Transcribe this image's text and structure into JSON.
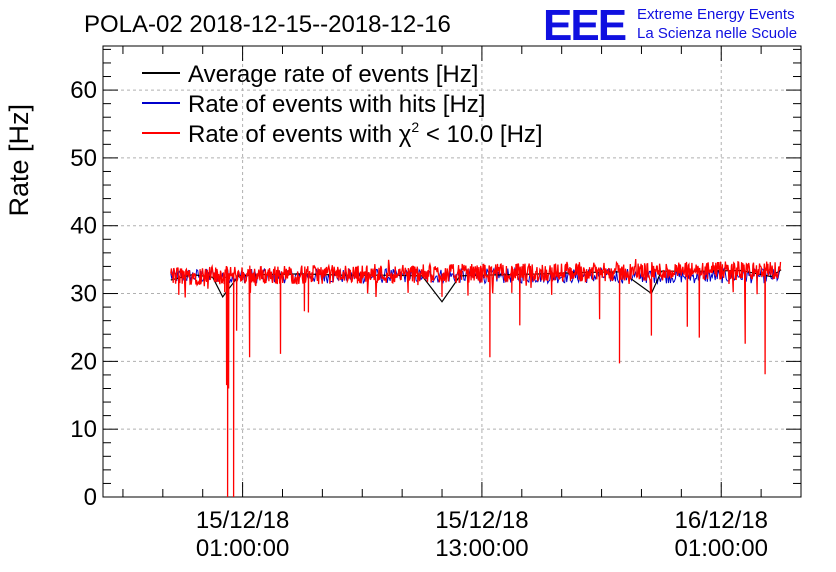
{
  "chart_data": {
    "type": "line",
    "title": "POLA-02 2018-12-15--2018-12-16",
    "ylabel": "Rate [Hz]",
    "xlabel": "",
    "ylim": [
      0,
      66.5
    ],
    "yticks": [
      0,
      10,
      20,
      30,
      40,
      50,
      60
    ],
    "xlim_hours": [
      -6.0,
      29.0
    ],
    "xticks": [
      {
        "hour": 1,
        "date": "15/12/18",
        "time": "01:00:00"
      },
      {
        "hour": 13,
        "date": "15/12/18",
        "time": "13:00:00"
      },
      {
        "hour": 25,
        "date": "16/12/18",
        "time": "01:00:00"
      }
    ],
    "grid": true,
    "legend": {
      "position": "top-left",
      "entries": [
        {
          "label_main": "Average rate of events [Hz]",
          "color": "#000000"
        },
        {
          "label_main": "Rate of events with hits [Hz]",
          "color": "#0000cc"
        },
        {
          "label_main": "Rate of events with ",
          "chi": "χ",
          "sup": "2",
          "label_tail": " < 10.0 [Hz]",
          "color": "#ff0000"
        }
      ]
    },
    "series": [
      {
        "name": "Average rate of events",
        "color": "#000000",
        "x": [
          -2.6,
          -1.5,
          -0.5,
          0.0,
          0.8,
          2.0,
          4.0,
          6.0,
          8.0,
          10.0,
          11.0,
          11.9,
          13.0,
          14.5,
          16.0,
          18.0,
          20.0,
          21.5,
          22.0,
          24.0,
          26.0,
          27.5,
          28.0
        ],
        "values": [
          32.0,
          32.8,
          32.4,
          29.5,
          32.6,
          32.8,
          32.9,
          32.7,
          32.7,
          32.6,
          28.8,
          32.6,
          32.7,
          32.8,
          32.9,
          33.1,
          33.2,
          30.0,
          33.3,
          33.3,
          33.4,
          32.5,
          33.5
        ]
      },
      {
        "name": "Rate of events with hits",
        "color": "#0000cc",
        "baseline": 32.6,
        "x_range": [
          -2.6,
          28.0
        ]
      },
      {
        "name": "Rate of events with chi2 < 10.0",
        "color": "#ff0000",
        "baseline": 32.6,
        "noise": 1.4,
        "x_range": [
          -2.6,
          28.0
        ],
        "dips": [
          {
            "x": -2.2,
            "y": 29.8
          },
          {
            "x": 0.1,
            "y": 30.2
          },
          {
            "x": 0.2,
            "y": 16.5
          },
          {
            "x": 0.25,
            "y": 0.0
          },
          {
            "x": 0.3,
            "y": 16.0
          },
          {
            "x": 0.55,
            "y": 0.0
          },
          {
            "x": 0.7,
            "y": 24.5
          },
          {
            "x": 1.35,
            "y": 20.6
          },
          {
            "x": 2.9,
            "y": 21.1
          },
          {
            "x": 4.1,
            "y": 27.4
          },
          {
            "x": 4.3,
            "y": 27.2
          },
          {
            "x": 9.3,
            "y": 30.1
          },
          {
            "x": 11.0,
            "y": 29.5
          },
          {
            "x": 12.3,
            "y": 29.7
          },
          {
            "x": 13.4,
            "y": 20.6
          },
          {
            "x": 14.5,
            "y": 30.1
          },
          {
            "x": 14.9,
            "y": 25.3
          },
          {
            "x": 16.5,
            "y": 29.8
          },
          {
            "x": 18.9,
            "y": 26.2
          },
          {
            "x": 19.9,
            "y": 19.7
          },
          {
            "x": 21.5,
            "y": 23.8
          },
          {
            "x": 23.3,
            "y": 25.1
          },
          {
            "x": 23.9,
            "y": 23.5
          },
          {
            "x": 25.6,
            "y": 30.2
          },
          {
            "x": 26.2,
            "y": 22.6
          },
          {
            "x": 26.8,
            "y": 29.9
          },
          {
            "x": 27.2,
            "y": 18.1
          }
        ]
      }
    ]
  },
  "logo": {
    "mark": "EEE",
    "line1": "Extreme Energy Events",
    "line2": "La Scienza nelle Scuole",
    "color": "#1010e0"
  }
}
